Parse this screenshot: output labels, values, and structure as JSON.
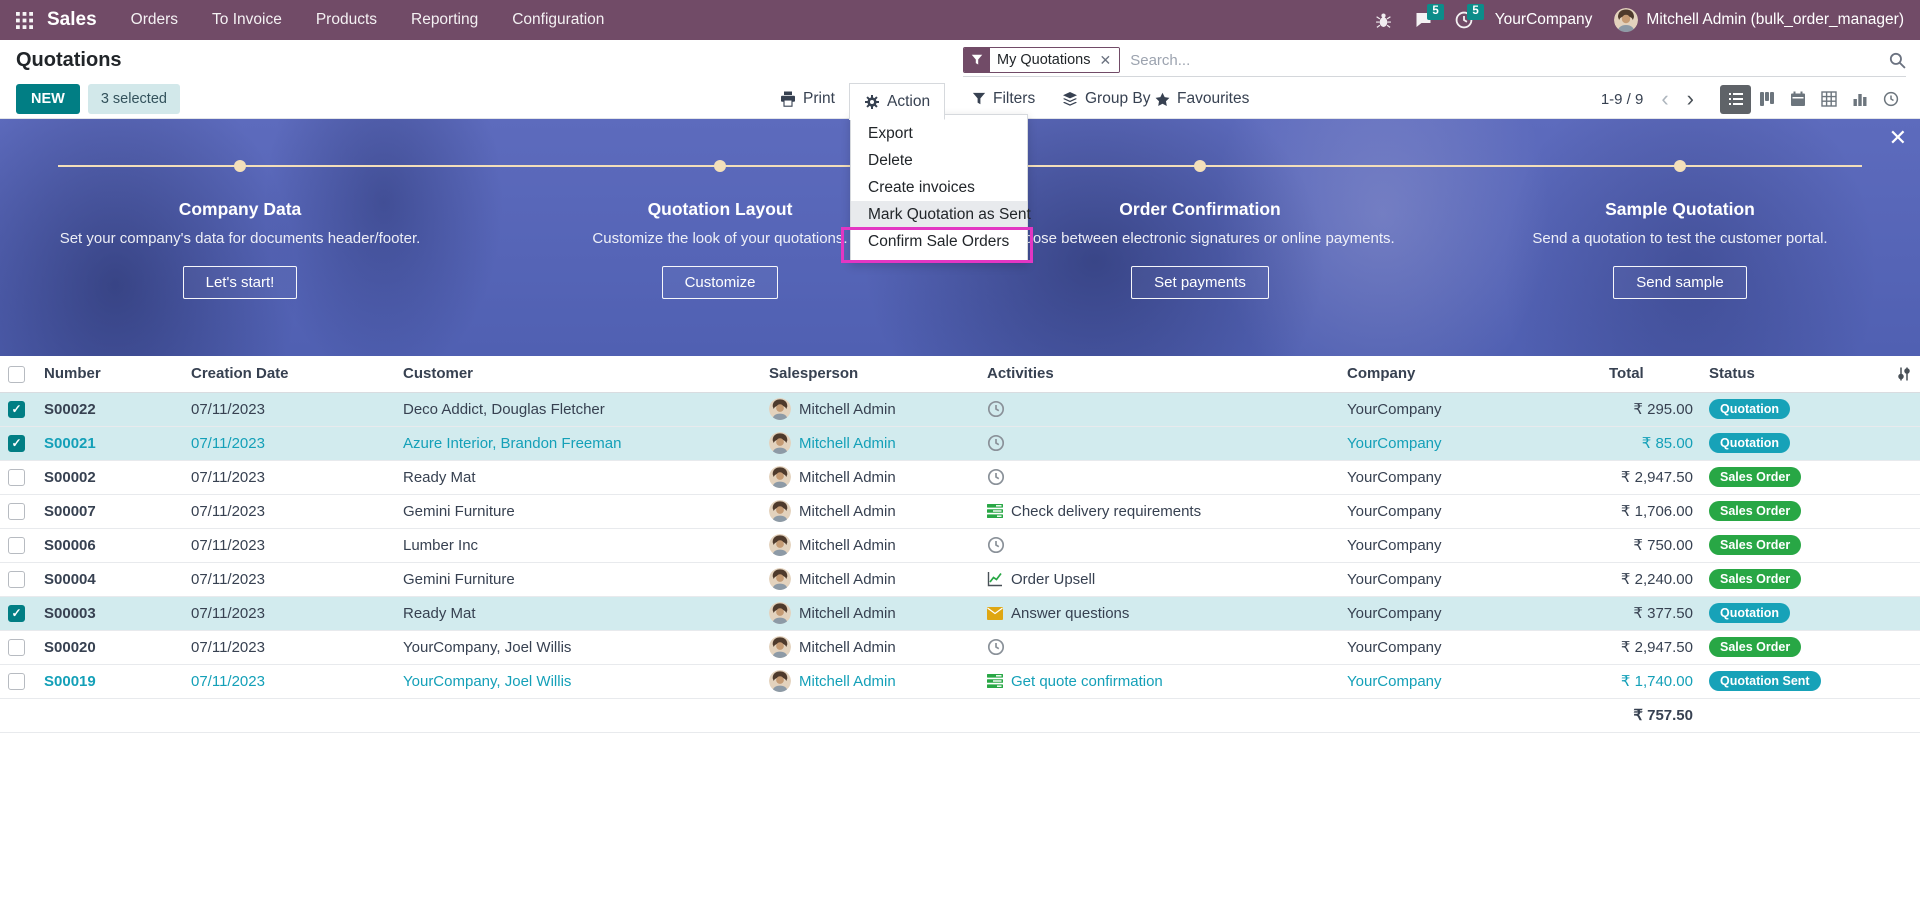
{
  "topbar": {
    "app_name": "Sales",
    "menus": [
      "Orders",
      "To Invoice",
      "Products",
      "Reporting",
      "Configuration"
    ],
    "message_count": "5",
    "activity_count": "5",
    "company": "YourCompany",
    "user": "Mitchell Admin (bulk_order_manager)"
  },
  "page": {
    "title": "Quotations"
  },
  "search": {
    "filter_tag": "My Quotations",
    "placeholder": "Search..."
  },
  "controls": {
    "new_label": "NEW",
    "selected_label": "3 selected",
    "print_label": "Print",
    "action_label": "Action",
    "filters_label": "Filters",
    "groupby_label": "Group By",
    "favourites_label": "Favourites",
    "pager": "1-9 / 9"
  },
  "action_menu": {
    "items": [
      "Export",
      "Delete",
      "Create invoices",
      "Mark Quotation as Sent",
      "Confirm Sale Orders"
    ],
    "hovered_item": "Mark Quotation as Sent",
    "highlighted_item": "Confirm Sale Orders",
    "highlight_color": "#e336c3"
  },
  "onboarding": {
    "steps": [
      {
        "title": "Company Data",
        "description": "Set your company's data for documents header/footer.",
        "button": "Let's start!"
      },
      {
        "title": "Quotation Layout",
        "description": "Customize the look of your quotations.",
        "button": "Customize"
      },
      {
        "title": "Order Confirmation",
        "description": "Choose between electronic signatures or online payments.",
        "button": "Set payments"
      },
      {
        "title": "Sample Quotation",
        "description": "Send a quotation to test the customer portal.",
        "button": "Send sample"
      }
    ]
  },
  "table": {
    "columns": [
      "Number",
      "Creation Date",
      "Customer",
      "Salesperson",
      "Activities",
      "Company",
      "Total",
      "Status"
    ],
    "rows": [
      {
        "number": "S00022",
        "date": "07/11/2023",
        "customer": "Deco Addict, Douglas Fletcher",
        "salesperson": "Mitchell Admin",
        "activity_icon": "clock",
        "activity_label": "",
        "company": "YourCompany",
        "total": "₹ 295.00",
        "status": "Quotation",
        "status_type": "quotation",
        "checked": true,
        "selected": true,
        "accent": false
      },
      {
        "number": "S00021",
        "date": "07/11/2023",
        "customer": "Azure Interior, Brandon Freeman",
        "salesperson": "Mitchell Admin",
        "activity_icon": "clock",
        "activity_label": "",
        "company": "YourCompany",
        "total": "₹ 85.00",
        "status": "Quotation",
        "status_type": "quotation",
        "checked": true,
        "selected": true,
        "accent": true
      },
      {
        "number": "S00002",
        "date": "07/11/2023",
        "customer": "Ready Mat",
        "salesperson": "Mitchell Admin",
        "activity_icon": "clock",
        "activity_label": "",
        "company": "YourCompany",
        "total": "₹ 2,947.50",
        "status": "Sales Order",
        "status_type": "sales-order",
        "checked": false,
        "selected": false,
        "accent": false
      },
      {
        "number": "S00007",
        "date": "07/11/2023",
        "customer": "Gemini Furniture",
        "salesperson": "Mitchell Admin",
        "activity_icon": "tasks",
        "activity_label": "Check delivery requirements",
        "company": "YourCompany",
        "total": "₹ 1,706.00",
        "status": "Sales Order",
        "status_type": "sales-order",
        "checked": false,
        "selected": false,
        "accent": false
      },
      {
        "number": "S00006",
        "date": "07/11/2023",
        "customer": "Lumber Inc",
        "salesperson": "Mitchell Admin",
        "activity_icon": "clock",
        "activity_label": "",
        "company": "YourCompany",
        "total": "₹ 750.00",
        "status": "Sales Order",
        "status_type": "sales-order",
        "checked": false,
        "selected": false,
        "accent": false
      },
      {
        "number": "S00004",
        "date": "07/11/2023",
        "customer": "Gemini Furniture",
        "salesperson": "Mitchell Admin",
        "activity_icon": "chart",
        "activity_label": "Order Upsell",
        "company": "YourCompany",
        "total": "₹ 2,240.00",
        "status": "Sales Order",
        "status_type": "sales-order",
        "checked": false,
        "selected": false,
        "accent": false
      },
      {
        "number": "S00003",
        "date": "07/11/2023",
        "customer": "Ready Mat",
        "salesperson": "Mitchell Admin",
        "activity_icon": "envelope",
        "activity_label": "Answer questions",
        "company": "YourCompany",
        "total": "₹ 377.50",
        "status": "Quotation",
        "status_type": "quotation",
        "checked": true,
        "selected": true,
        "accent": false
      },
      {
        "number": "S00020",
        "date": "07/11/2023",
        "customer": "YourCompany, Joel Willis",
        "salesperson": "Mitchell Admin",
        "activity_icon": "clock",
        "activity_label": "",
        "company": "YourCompany",
        "total": "₹ 2,947.50",
        "status": "Sales Order",
        "status_type": "sales-order",
        "checked": false,
        "selected": false,
        "accent": false
      },
      {
        "number": "S00019",
        "date": "07/11/2023",
        "customer": "YourCompany, Joel Willis",
        "salesperson": "Mitchell Admin",
        "activity_icon": "tasks",
        "activity_label": "Get quote confirmation",
        "company": "YourCompany",
        "total": "₹ 1,740.00",
        "status": "Quotation Sent",
        "status_type": "quotation-sent",
        "checked": false,
        "selected": false,
        "accent": true
      }
    ],
    "footer_total": "₹ 757.50"
  },
  "colors": {
    "navbar": "#714B67",
    "primary": "#017E84",
    "accent_row_text": "#14a0b8",
    "badge_quotation": "#17a2b8",
    "badge_sales_order": "#28a745",
    "selected_row_bg": "#d2ebee",
    "annotation": "#e336c3"
  }
}
